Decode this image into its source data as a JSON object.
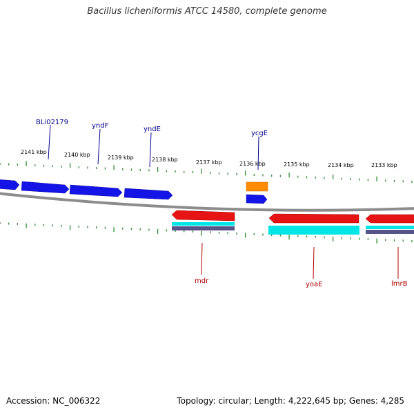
{
  "title": "Bacillus licheniformis ATCC 14580, complete genome",
  "footer": {
    "accession": "Accession: NC_006322",
    "topology": "Topology: circular; Length: 4,222,645 bp; Genes: 4,285"
  },
  "colors": {
    "backbone": "#8c8c8c",
    "ticks": "#2e8b2e",
    "forward_gene": "#1414e6",
    "reverse_gene": "#e61414",
    "orange_feature": "#ff8c00",
    "cyan_feature": "#00e5e5",
    "purple_feature": "#55558a",
    "forward_label": "#00008b",
    "reverse_label": "#b00000"
  },
  "scale_labels": [
    "2141 kbp",
    "2140 kbp",
    "2139 kbp",
    "2138 kbp",
    "2137 kbp",
    "2136 kbp",
    "2135 kbp",
    "2134 kbp",
    "2133 kbp"
  ],
  "labels": {
    "forward": [
      "BLi02179",
      "yndF",
      "yndE",
      "ycgE"
    ],
    "reverse": [
      "mdr",
      "yoaE",
      "lmrB"
    ]
  }
}
